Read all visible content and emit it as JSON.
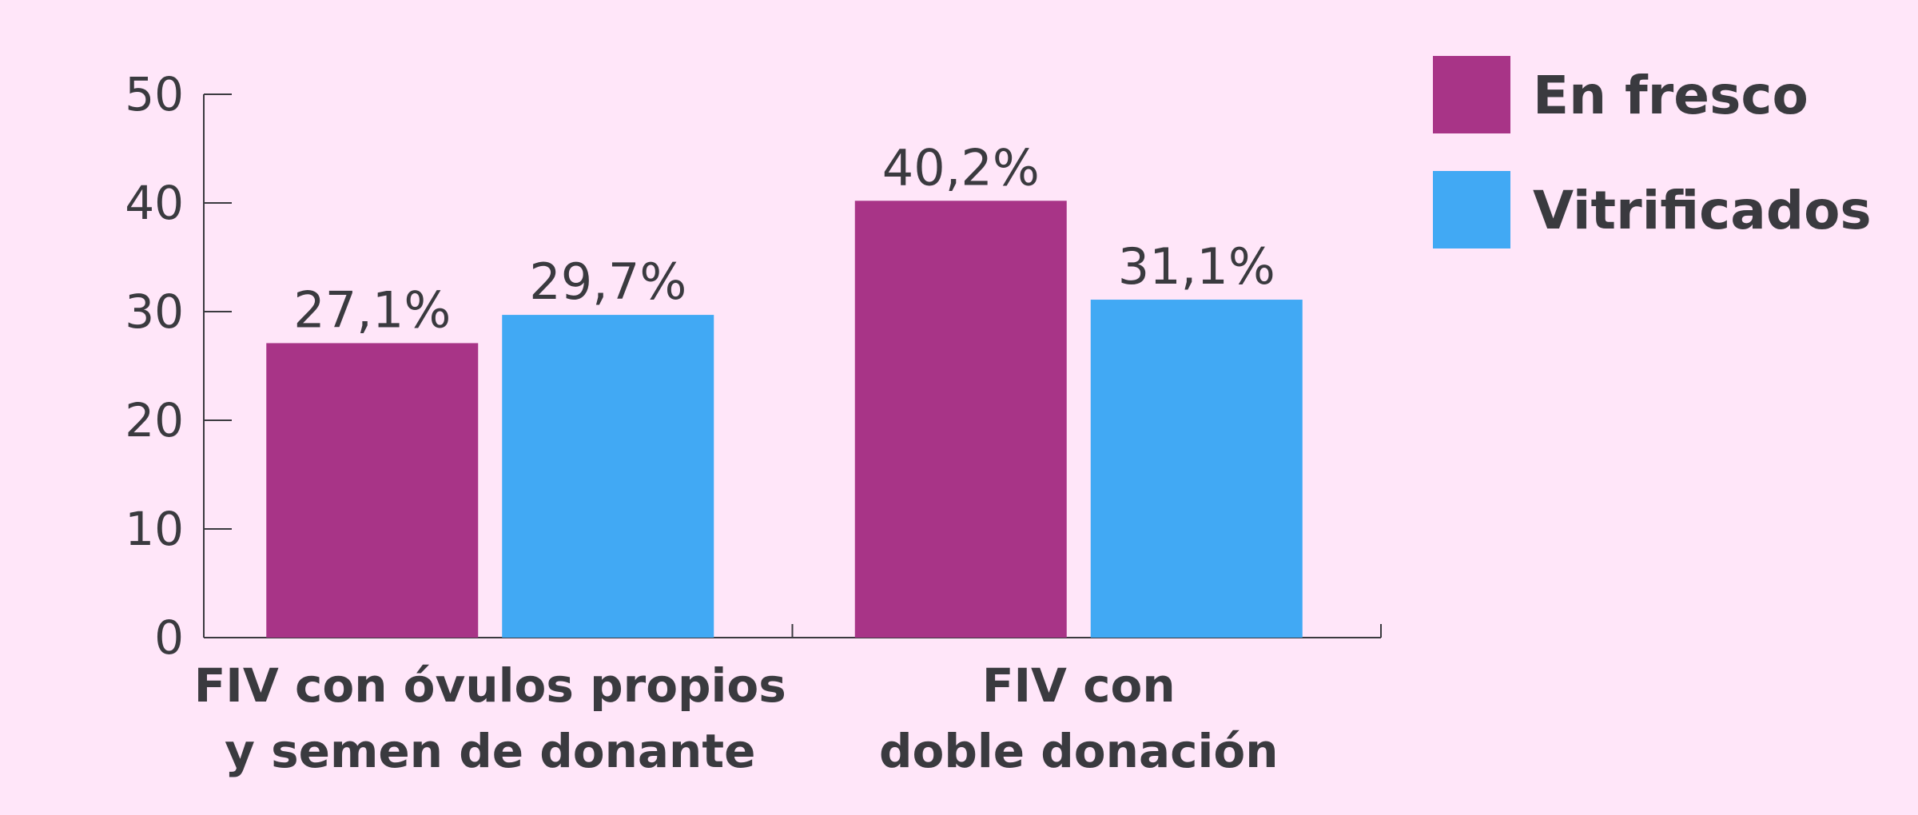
{
  "colors": {
    "background": "#ffe6f9",
    "axis": "#3a3a3f",
    "text": "#3a3a3f"
  },
  "chart_data": {
    "type": "bar",
    "title": "",
    "xlabel": "",
    "ylabel": "",
    "ylim": [
      0,
      50
    ],
    "yticks": [
      0,
      10,
      20,
      30,
      40,
      50
    ],
    "grid": false,
    "legend_position": "top-right",
    "categories": [
      [
        "FIV con óvulos propios",
        "y semen de donante"
      ],
      [
        "FIV con",
        "doble donación"
      ]
    ],
    "series": [
      {
        "name": "En fresco",
        "color": "#a83487",
        "values": [
          27.1,
          40.2
        ],
        "labels": [
          "27,1%",
          "40,2%"
        ]
      },
      {
        "name": "Vitrificados",
        "color": "#41a9f4",
        "values": [
          29.7,
          31.1
        ],
        "labels": [
          "29,7%",
          "31,1%"
        ]
      }
    ]
  }
}
